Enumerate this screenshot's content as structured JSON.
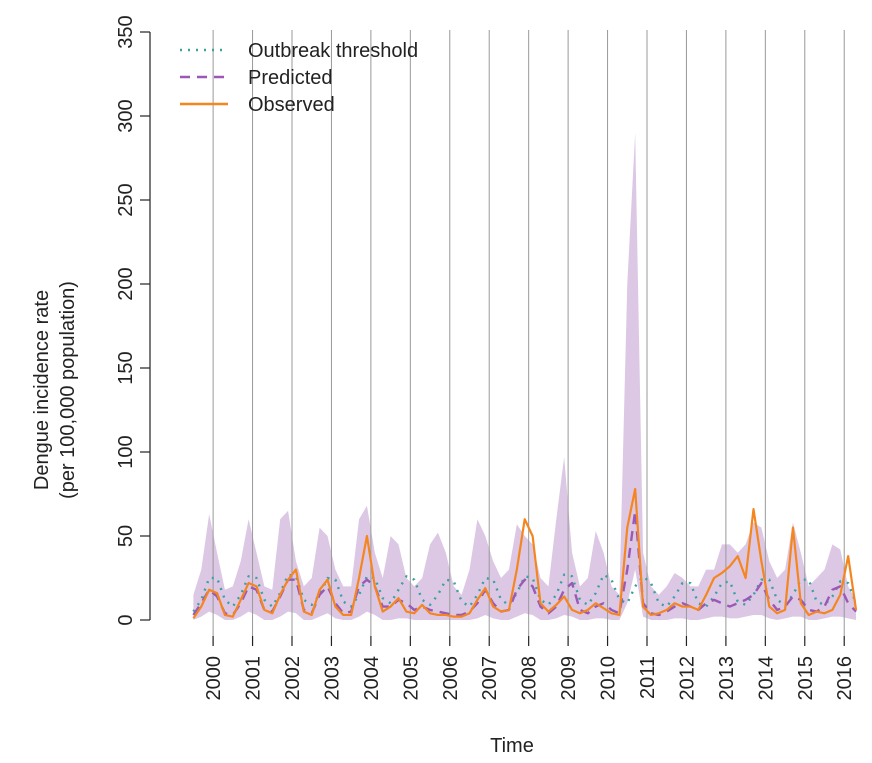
{
  "chart_data": {
    "type": "line",
    "y_label": [
      "Dengue incidence rate",
      "(per 100,000 population)"
    ],
    "x_label": "Time",
    "legend": "top-left",
    "grid": true,
    "xlim": [
      1998.4,
      2016.4
    ],
    "ylim": [
      0,
      350
    ],
    "yticks": [
      0,
      50,
      100,
      150,
      200,
      250,
      300,
      350
    ],
    "xticks": [
      2000,
      2001,
      2002,
      2003,
      2004,
      2005,
      2006,
      2007,
      2008,
      2009,
      2010,
      2011,
      2012,
      2013,
      2014,
      2015,
      2016
    ],
    "x": [
      1999.5,
      1999.7,
      1999.9,
      2000.1,
      2000.3,
      2000.5,
      2000.7,
      2000.9,
      2001.1,
      2001.3,
      2001.5,
      2001.7,
      2001.9,
      2002.1,
      2002.3,
      2002.5,
      2002.7,
      2002.9,
      2003.1,
      2003.3,
      2003.5,
      2003.7,
      2003.9,
      2004.1,
      2004.3,
      2004.5,
      2004.7,
      2004.9,
      2005.1,
      2005.3,
      2005.5,
      2005.7,
      2005.9,
      2006.1,
      2006.3,
      2006.5,
      2006.7,
      2006.9,
      2007.1,
      2007.3,
      2007.5,
      2007.7,
      2007.9,
      2008.1,
      2008.3,
      2008.5,
      2008.7,
      2008.9,
      2009.1,
      2009.3,
      2009.5,
      2009.7,
      2009.9,
      2010.1,
      2010.3,
      2010.5,
      2010.7,
      2010.9,
      2011.1,
      2011.3,
      2011.5,
      2011.7,
      2011.9,
      2012.1,
      2012.3,
      2012.5,
      2012.7,
      2012.9,
      2013.1,
      2013.3,
      2013.5,
      2013.7,
      2013.9,
      2014.1,
      2014.3,
      2014.5,
      2014.7,
      2014.9,
      2015.1,
      2015.3,
      2015.5,
      2015.7,
      2015.9,
      2016.1,
      2016.3
    ],
    "band": {
      "color": "#dcc8e4",
      "upper": [
        15,
        30,
        63,
        40,
        18,
        20,
        35,
        60,
        40,
        20,
        18,
        60,
        65,
        35,
        20,
        25,
        55,
        50,
        30,
        20,
        20,
        60,
        68,
        40,
        25,
        50,
        45,
        25,
        20,
        25,
        45,
        52,
        40,
        20,
        15,
        30,
        60,
        50,
        35,
        25,
        30,
        57,
        50,
        45,
        25,
        20,
        60,
        97,
        40,
        20,
        25,
        53,
        40,
        20,
        15,
        200,
        290,
        40,
        20,
        15,
        20,
        28,
        25,
        20,
        20,
        30,
        30,
        45,
        45,
        40,
        45,
        58,
        55,
        35,
        25,
        30,
        58,
        40,
        20,
        25,
        30,
        45,
        42,
        20,
        12
      ],
      "lower": [
        0,
        2,
        5,
        3,
        0,
        0,
        2,
        5,
        3,
        0,
        0,
        2,
        5,
        4,
        0,
        0,
        2,
        4,
        1,
        0,
        0,
        2,
        5,
        3,
        0,
        0,
        1,
        1,
        0,
        0,
        0,
        0,
        0,
        0,
        0,
        0,
        1,
        3,
        1,
        0,
        0,
        2,
        4,
        3,
        0,
        0,
        1,
        3,
        2,
        0,
        0,
        1,
        1,
        0,
        0,
        10,
        30,
        2,
        0,
        0,
        0,
        1,
        1,
        0,
        0,
        1,
        2,
        2,
        1,
        1,
        2,
        3,
        3,
        1,
        0,
        1,
        2,
        2,
        0,
        0,
        1,
        2,
        2,
        1,
        0
      ]
    },
    "series": [
      {
        "name": "Outbreak threshold",
        "color": "#3aa0a0",
        "style": "dotted",
        "values": [
          5,
          12,
          25,
          25,
          12,
          8,
          15,
          26,
          25,
          12,
          8,
          16,
          27,
          26,
          12,
          9,
          15,
          25,
          24,
          11,
          8,
          15,
          26,
          25,
          13,
          10,
          18,
          26,
          24,
          12,
          9,
          15,
          24,
          23,
          11,
          8,
          15,
          25,
          24,
          12,
          9,
          16,
          26,
          25,
          12,
          9,
          15,
          27,
          26,
          12,
          9,
          16,
          27,
          24,
          12,
          10,
          20,
          26,
          22,
          10,
          8,
          14,
          22,
          22,
          10,
          8,
          14,
          22,
          23,
          11,
          9,
          15,
          24,
          24,
          12,
          9,
          15,
          24,
          24,
          11,
          9,
          14,
          23,
          22,
          10
        ]
      },
      {
        "name": "Predicted",
        "color": "#9b59b6",
        "style": "dashed",
        "values": [
          3,
          10,
          18,
          14,
          4,
          3,
          10,
          20,
          18,
          6,
          5,
          14,
          24,
          24,
          6,
          4,
          15,
          20,
          10,
          4,
          5,
          20,
          24,
          20,
          8,
          8,
          12,
          10,
          6,
          8,
          6,
          5,
          4,
          3,
          3,
          5,
          10,
          18,
          10,
          5,
          6,
          18,
          24,
          20,
          8,
          4,
          8,
          18,
          22,
          6,
          4,
          8,
          10,
          6,
          4,
          30,
          65,
          10,
          4,
          3,
          5,
          8,
          10,
          8,
          6,
          10,
          12,
          10,
          8,
          10,
          12,
          15,
          22,
          12,
          6,
          8,
          14,
          12,
          6,
          5,
          8,
          18,
          20,
          10,
          5
        ]
      },
      {
        "name": "Observed",
        "color": "#f5861f",
        "style": "solid",
        "values": [
          1,
          8,
          18,
          16,
          3,
          2,
          12,
          22,
          20,
          6,
          4,
          15,
          24,
          30,
          5,
          3,
          18,
          24,
          8,
          3,
          3,
          25,
          50,
          20,
          5,
          8,
          13,
          5,
          4,
          9,
          4,
          3,
          3,
          2,
          2,
          4,
          12,
          19,
          8,
          5,
          6,
          30,
          60,
          50,
          10,
          5,
          9,
          14,
          6,
          4,
          6,
          10,
          7,
          4,
          3,
          55,
          78,
          8,
          3,
          4,
          6,
          10,
          8,
          8,
          6,
          15,
          25,
          28,
          32,
          38,
          25,
          66,
          35,
          8,
          4,
          6,
          55,
          10,
          3,
          5,
          4,
          6,
          15,
          38,
          6
        ]
      }
    ]
  }
}
